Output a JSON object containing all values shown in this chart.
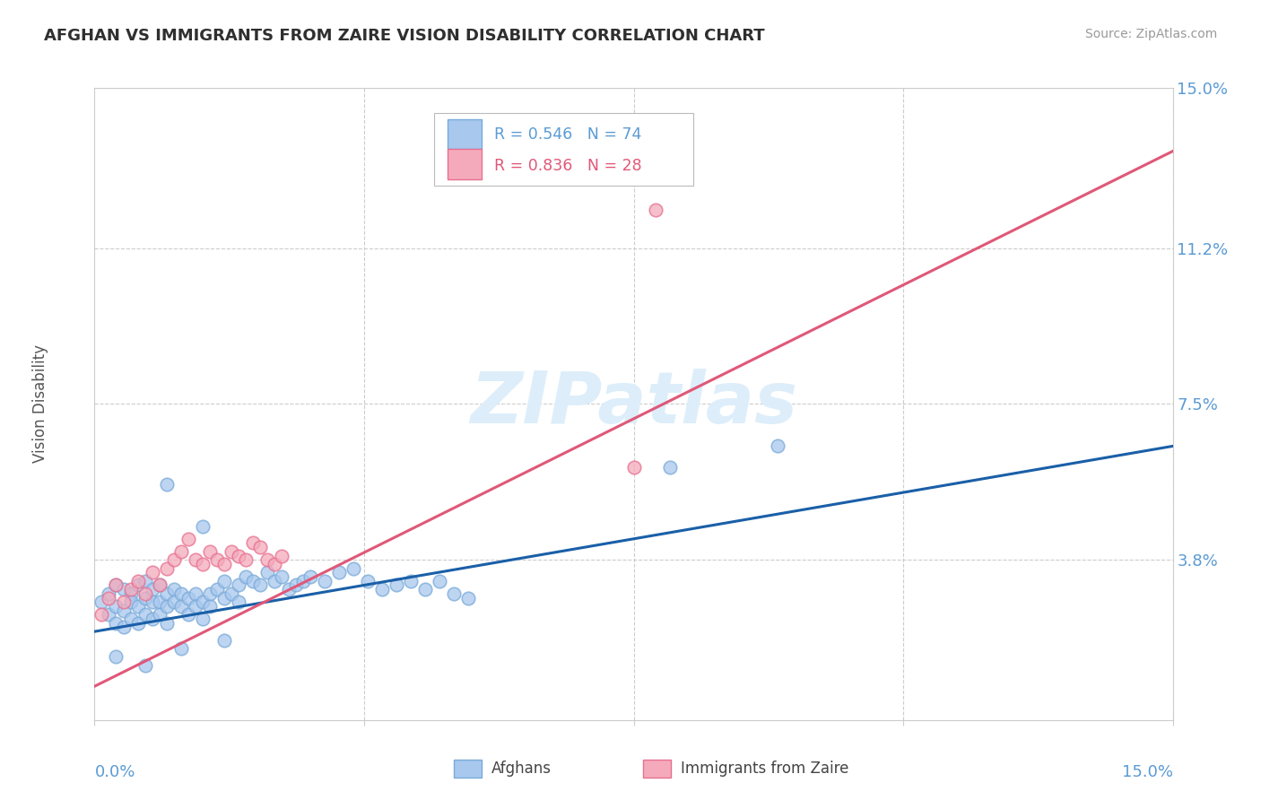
{
  "title": "AFGHAN VS IMMIGRANTS FROM ZAIRE VISION DISABILITY CORRELATION CHART",
  "source": "Source: ZipAtlas.com",
  "ylabel": "Vision Disability",
  "xlim": [
    0.0,
    0.15
  ],
  "ylim": [
    0.0,
    0.15
  ],
  "blue_R": 0.546,
  "blue_N": 74,
  "pink_R": 0.836,
  "pink_N": 28,
  "blue_color": "#A8C8EE",
  "pink_color": "#F4AABB",
  "blue_edge_color": "#7AAAD8",
  "pink_edge_color": "#E87090",
  "blue_line_color": "#1A5FA8",
  "pink_line_color": "#E05878",
  "watermark": "ZIPatlas",
  "watermark_color": "#DDEEFA",
  "grid_color": "#CCCCCC",
  "tick_label_color": "#5B9BD5",
  "blue_scatter_x": [
    0.001,
    0.002,
    0.002,
    0.003,
    0.003,
    0.003,
    0.004,
    0.004,
    0.004,
    0.005,
    0.005,
    0.005,
    0.006,
    0.006,
    0.006,
    0.007,
    0.007,
    0.007,
    0.008,
    0.008,
    0.008,
    0.009,
    0.009,
    0.009,
    0.01,
    0.01,
    0.01,
    0.011,
    0.011,
    0.012,
    0.012,
    0.013,
    0.013,
    0.014,
    0.014,
    0.015,
    0.015,
    0.016,
    0.016,
    0.017,
    0.018,
    0.018,
    0.019,
    0.02,
    0.02,
    0.021,
    0.022,
    0.023,
    0.024,
    0.025,
    0.026,
    0.027,
    0.028,
    0.029,
    0.03,
    0.032,
    0.034,
    0.036,
    0.038,
    0.04,
    0.042,
    0.044,
    0.046,
    0.048,
    0.05,
    0.052,
    0.01,
    0.015,
    0.08,
    0.095,
    0.003,
    0.007,
    0.012,
    0.018
  ],
  "blue_scatter_y": [
    0.028,
    0.03,
    0.025,
    0.032,
    0.027,
    0.023,
    0.031,
    0.026,
    0.022,
    0.03,
    0.028,
    0.024,
    0.032,
    0.027,
    0.023,
    0.033,
    0.029,
    0.025,
    0.031,
    0.028,
    0.024,
    0.032,
    0.028,
    0.025,
    0.03,
    0.027,
    0.023,
    0.031,
    0.028,
    0.03,
    0.027,
    0.029,
    0.025,
    0.03,
    0.027,
    0.028,
    0.024,
    0.03,
    0.027,
    0.031,
    0.033,
    0.029,
    0.03,
    0.032,
    0.028,
    0.034,
    0.033,
    0.032,
    0.035,
    0.033,
    0.034,
    0.031,
    0.032,
    0.033,
    0.034,
    0.033,
    0.035,
    0.036,
    0.033,
    0.031,
    0.032,
    0.033,
    0.031,
    0.033,
    0.03,
    0.029,
    0.056,
    0.046,
    0.06,
    0.065,
    0.015,
    0.013,
    0.017,
    0.019
  ],
  "pink_scatter_x": [
    0.001,
    0.002,
    0.003,
    0.004,
    0.005,
    0.006,
    0.007,
    0.008,
    0.009,
    0.01,
    0.011,
    0.012,
    0.013,
    0.014,
    0.015,
    0.016,
    0.017,
    0.018,
    0.019,
    0.02,
    0.021,
    0.022,
    0.023,
    0.024,
    0.025,
    0.026,
    0.075,
    0.078
  ],
  "pink_scatter_y": [
    0.025,
    0.029,
    0.032,
    0.028,
    0.031,
    0.033,
    0.03,
    0.035,
    0.032,
    0.036,
    0.038,
    0.04,
    0.043,
    0.038,
    0.037,
    0.04,
    0.038,
    0.037,
    0.04,
    0.039,
    0.038,
    0.042,
    0.041,
    0.038,
    0.037,
    0.039,
    0.06,
    0.121
  ],
  "blue_line_x": [
    0.0,
    0.15
  ],
  "blue_line_y": [
    0.021,
    0.065
  ],
  "pink_line_x": [
    0.0,
    0.15
  ],
  "pink_line_y": [
    0.008,
    0.135
  ]
}
